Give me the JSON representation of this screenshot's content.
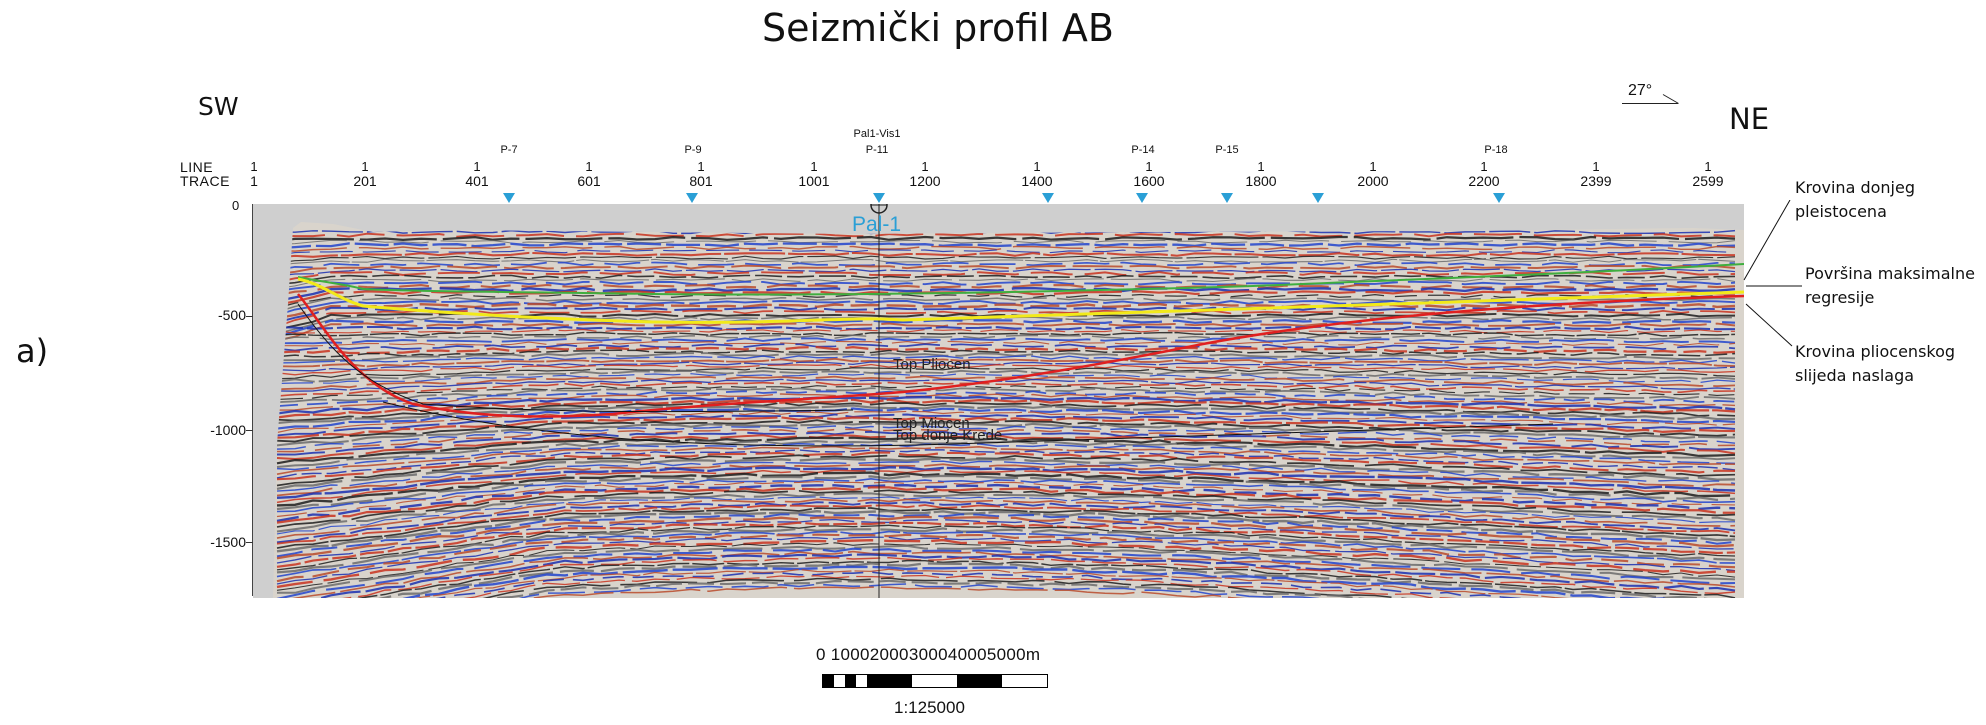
{
  "title": "Seizmički profil AB",
  "orientation": {
    "left": "SW",
    "right": "NE",
    "azimuth": "27°"
  },
  "panel_label": "a)",
  "axis": {
    "line_label": "LINE",
    "trace_label": "TRACE",
    "line_values": [
      "1",
      "1",
      "1",
      "1",
      "1",
      "1",
      "1",
      "1",
      "1",
      "1",
      "1",
      "1",
      "1",
      "1"
    ],
    "trace_values": [
      "1",
      "201",
      "401",
      "601",
      "801",
      "1001",
      "1200",
      "1400",
      "1600",
      "1800",
      "2000",
      "2200",
      "2399",
      "2599"
    ],
    "depth_zero": "0",
    "depth_labels": [
      "-500",
      "-1000",
      "-1500"
    ],
    "depth_values": [
      -500,
      -1000,
      -1500
    ],
    "depth_range": [
      0,
      -1750
    ]
  },
  "wells": [
    {
      "name": "P-7"
    },
    {
      "name": "P-9"
    },
    {
      "name": "Pal1-Vis1",
      "name2": "P-11"
    },
    {
      "name": "P-14"
    },
    {
      "name": "P-15"
    },
    {
      "name": "P-18"
    }
  ],
  "well_marker_color": "#2a9fd6",
  "borehole": "Pal-1",
  "horizons": [
    {
      "label": "Top Pliocen"
    },
    {
      "label": "Top Miocen"
    },
    {
      "label": "Top donje Krede"
    }
  ],
  "annotations": [
    {
      "line1": "Krovina donjeg",
      "line2": "pleistocena"
    },
    {
      "line1": "Površina maksimalne",
      "line2": "regresije"
    },
    {
      "line1": "Krovina pliocenskog",
      "line2": "slijeda naslaga"
    }
  ],
  "horizon_colors": {
    "pleistocene": "#3fae3f",
    "max_regression": "#f2ea1a",
    "pliocene": "#e02020"
  },
  "scale": {
    "numbers": "0   10002000300040005000m",
    "ratio": "1:125000"
  }
}
